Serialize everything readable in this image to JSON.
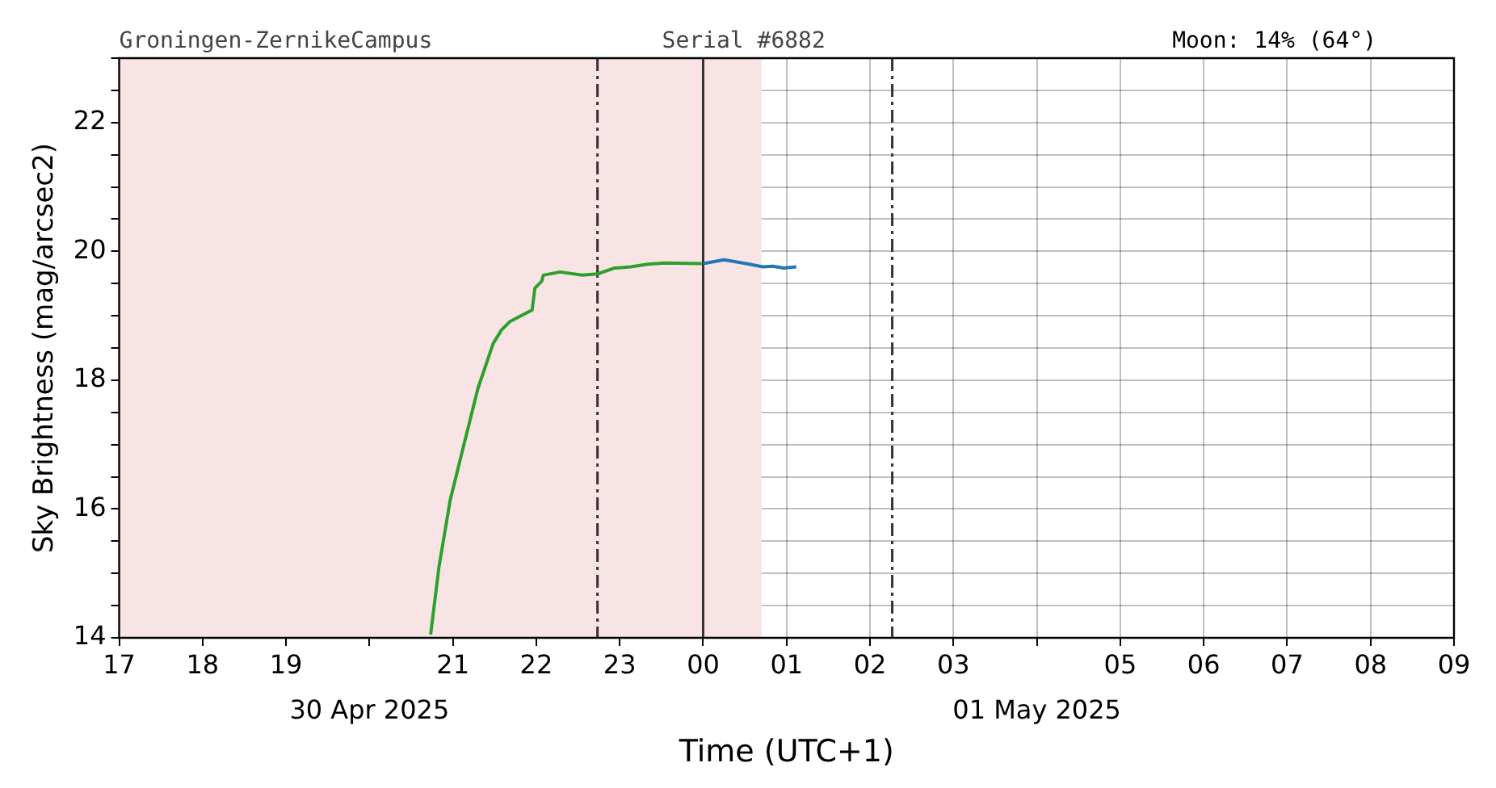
{
  "chart_data": {
    "type": "line",
    "xlabel": "Time (UTC+1)",
    "ylabel": "Sky Brightness (mag/arcsec2)",
    "annotations": [
      "Groningen-ZernikeCampus",
      "Serial #6882",
      "Moon: 14% (64°)",
      "30 Apr 2025",
      "01 May 2025"
    ],
    "xlim": [
      "2025-04-30T17:00",
      "2025-05-01T09:00"
    ],
    "xticks": [
      {
        "value": "2025-04-30T17:00",
        "label": "17"
      },
      {
        "value": "2025-04-30T18:00",
        "label": "18"
      },
      {
        "value": "2025-04-30T19:00",
        "label": "19"
      },
      {
        "value": "2025-04-30T20:00",
        "label": null
      },
      {
        "value": "2025-04-30T21:00",
        "label": "21"
      },
      {
        "value": "2025-04-30T22:00",
        "label": "22"
      },
      {
        "value": "2025-04-30T23:00",
        "label": "23"
      },
      {
        "value": "2025-05-01T00:00",
        "label": "00"
      },
      {
        "value": "2025-05-01T01:00",
        "label": "01"
      },
      {
        "value": "2025-05-01T02:00",
        "label": "02"
      },
      {
        "value": "2025-05-01T03:00",
        "label": "03"
      },
      {
        "value": "2025-05-01T04:00",
        "label": null
      },
      {
        "value": "2025-05-01T05:00",
        "label": "05"
      },
      {
        "value": "2025-05-01T06:00",
        "label": "06"
      },
      {
        "value": "2025-05-01T07:00",
        "label": "07"
      },
      {
        "value": "2025-05-01T08:00",
        "label": "08"
      },
      {
        "value": "2025-05-01T09:00",
        "label": "09"
      }
    ],
    "ylim": [
      14,
      23
    ],
    "yticks": [
      14,
      {
        "value": 14.5,
        "label": null
      },
      {
        "value": 15,
        "label": null
      },
      {
        "value": 15.5,
        "label": null
      },
      16,
      {
        "value": 16.5,
        "label": null
      },
      {
        "value": 17,
        "label": null
      },
      {
        "value": 17.5,
        "label": null
      },
      18,
      {
        "value": 18.5,
        "label": null
      },
      {
        "value": 19,
        "label": null
      },
      {
        "value": 19.5,
        "label": null
      },
      20,
      {
        "value": 20.5,
        "label": null
      },
      {
        "value": 21,
        "label": null
      },
      {
        "value": 21.5,
        "label": null
      },
      22,
      {
        "value": 22.5,
        "label": null
      },
      {
        "value": 23,
        "label": null
      }
    ],
    "grid": true,
    "legend": false,
    "marker": "none",
    "bands": [
      {
        "axis": "x",
        "from": "2025-04-30T17:00",
        "to": "2025-05-01T00:42",
        "color": "#f8e4e4"
      }
    ],
    "ref_lines": [
      {
        "axis": "x",
        "value": "2025-04-30T22:44",
        "color": "#333333",
        "line_style": "dashed"
      },
      {
        "axis": "x",
        "value": "2025-05-01T00:00",
        "color": "#333333",
        "line_style": "solid"
      },
      {
        "axis": "x",
        "value": "2025-05-01T02:16",
        "color": "#333333",
        "line_style": "dashed"
      }
    ],
    "series": [
      {
        "color": "#2ca02c",
        "x": [
          "2025-04-30T20:44",
          "2025-04-30T20:50",
          "2025-04-30T20:58",
          "2025-04-30T21:06",
          "2025-04-30T21:18",
          "2025-04-30T21:29",
          "2025-04-30T21:35",
          "2025-04-30T21:41",
          "2025-04-30T21:57",
          "2025-04-30T21:59",
          "2025-04-30T22:04",
          "2025-04-30T22:05",
          "2025-04-30T22:17",
          "2025-04-30T22:33",
          "2025-04-30T22:44",
          "2025-04-30T22:56",
          "2025-04-30T23:08",
          "2025-04-30T23:20",
          "2025-04-30T23:32",
          "2025-04-30T23:59"
        ],
        "values": [
          14.05,
          15.1,
          16.13,
          16.83,
          17.87,
          18.57,
          18.78,
          18.91,
          19.09,
          19.43,
          19.54,
          19.63,
          19.68,
          19.63,
          19.65,
          19.74,
          19.76,
          19.8,
          19.82,
          19.81
        ]
      },
      {
        "color": "#1f77b4",
        "x": [
          "2025-05-01T00:00",
          "2025-05-01T00:15",
          "2025-05-01T00:31",
          "2025-05-01T00:43",
          "2025-05-01T00:50",
          "2025-05-01T00:58",
          "2025-05-01T01:07"
        ],
        "values": [
          19.81,
          19.87,
          19.81,
          19.76,
          19.77,
          19.74,
          19.76
        ]
      }
    ]
  }
}
